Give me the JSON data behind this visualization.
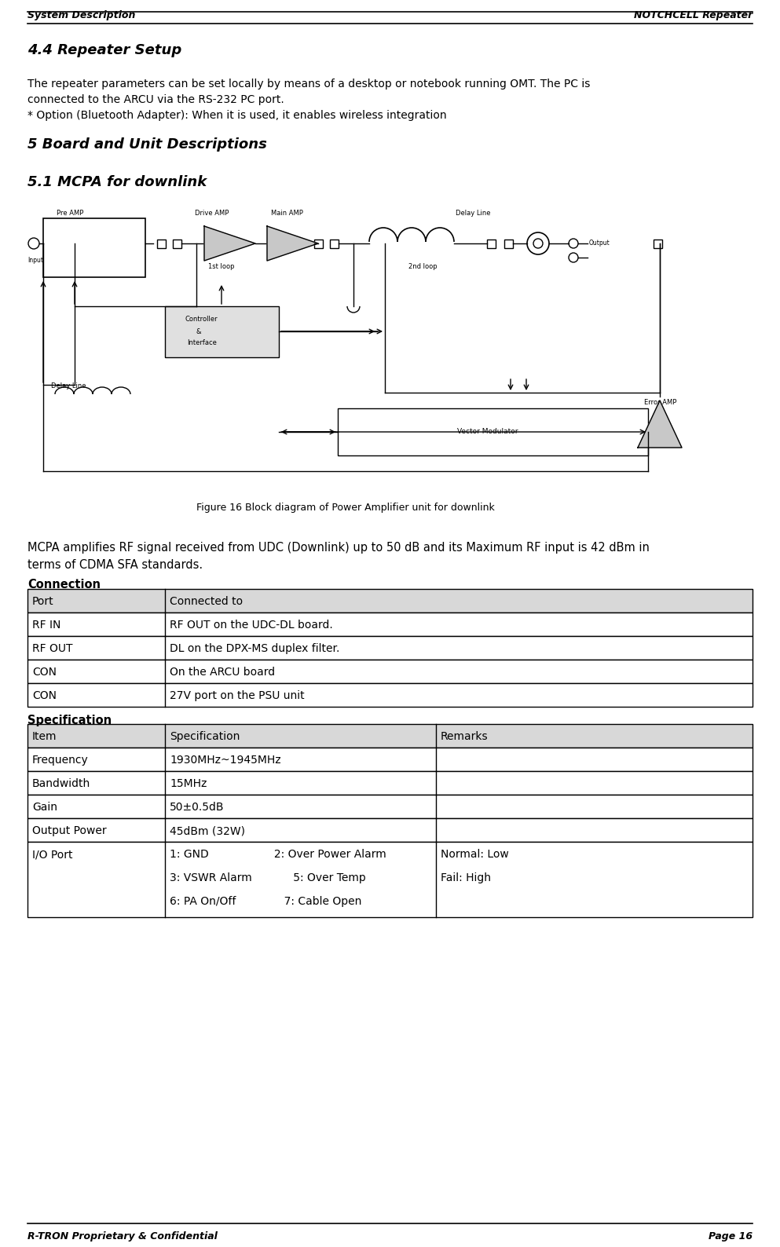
{
  "header_left": "System Description",
  "header_right": "NOTCHCELL Repeater",
  "section_44": "4.4 Repeater Setup",
  "para1": "The repeater parameters can be set locally by means of a desktop or notebook running OMT. The PC is",
  "para2": "connected to the ARCU via the RS-232 PC port.",
  "para3": "* Option (Bluetooth Adapter): When it is used, it enables wireless integration",
  "section_5": "5 Board and Unit Descriptions",
  "section_51": "5.1 MCPA for downlink",
  "fig_caption": "Figure 16 Block diagram of Power Amplifier unit for downlink",
  "para4": "MCPA amplifies RF signal received from UDC (Downlink) up to 50 dB and its Maximum RF input is 42 dBm in",
  "para5": "terms of CDMA SFA standards.",
  "connection_title": "Connection",
  "connection_headers": [
    "Port",
    "Connected to"
  ],
  "connection_rows": [
    [
      "RF IN",
      "RF OUT on the UDC-DL board."
    ],
    [
      "RF OUT",
      "DL on the DPX-MS duplex filter."
    ],
    [
      "CON",
      "On the ARCU board"
    ],
    [
      "CON",
      "27V port on the PSU unit"
    ]
  ],
  "spec_title": "Specification",
  "spec_headers": [
    "Item",
    "Specification",
    "Remarks"
  ],
  "spec_rows": [
    [
      "Frequency",
      "1930MHz~1945MHz",
      ""
    ],
    [
      "Bandwidth",
      "15MHz",
      ""
    ],
    [
      "Gain",
      "50±0.5dB",
      ""
    ],
    [
      "Output Power",
      "45dBm (32W)",
      ""
    ],
    [
      "I/O Port",
      "1: GND                   2: Over Power Alarm\n3: VSWR Alarm            5: Over Temp\n6: PA On/Off              7: Cable Open",
      "Normal: Low\nFail: High"
    ]
  ],
  "footer_left": "R-TRON Proprietary & Confidential",
  "footer_right": "Page 16",
  "bg_color": "#ffffff"
}
